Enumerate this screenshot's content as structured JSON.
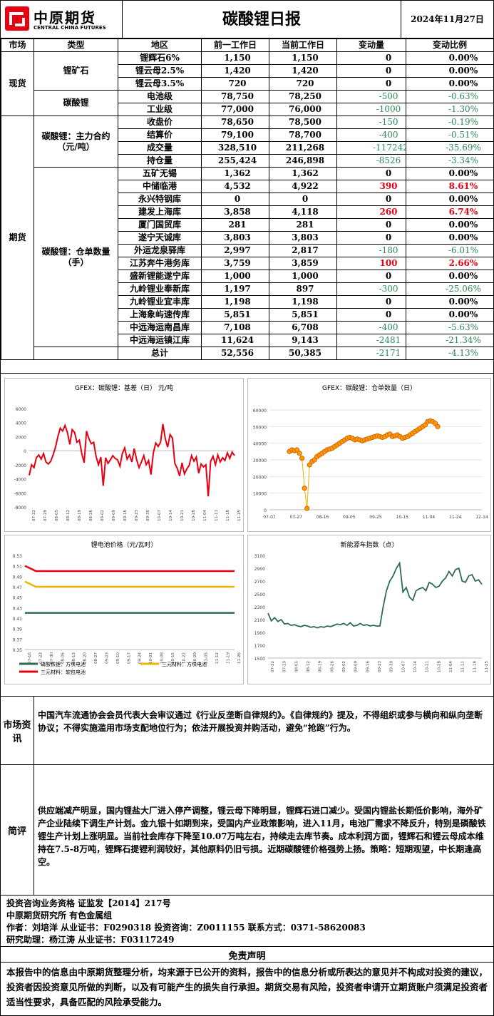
{
  "header": {
    "logo_cn": "中原期货",
    "logo_en": "CENTRAL CHINA FUTURES",
    "title": "碳酸锂日报",
    "date": "2024年11月27日"
  },
  "colors": {
    "accent_red": "#e60012",
    "negative_green": "#2e8b57"
  },
  "table": {
    "headers": [
      "市场",
      "类型",
      "地区",
      "前一工作日",
      "当前工作日",
      "变动量",
      "变动比例"
    ],
    "markets": [
      "现货",
      "期货"
    ],
    "categories": [
      "锂矿石",
      "碳酸锂",
      "碳酸锂：主力合约（元/吨）",
      "碳酸锂：仓单数量（手）"
    ],
    "rows": [
      {
        "name": "锂辉石6%",
        "prev": "1,150",
        "cur": "1,150",
        "chg": "0",
        "pct": "0.00%",
        "dir": "zero"
      },
      {
        "name": "锂云母2.5%",
        "prev": "1,420",
        "cur": "1,420",
        "chg": "0",
        "pct": "0.00%",
        "dir": "zero"
      },
      {
        "name": "锂云母3.5%",
        "prev": "720",
        "cur": "720",
        "chg": "0",
        "pct": "0.00%",
        "dir": "zero"
      },
      {
        "name": "电池级",
        "prev": "78,750",
        "cur": "78,250",
        "chg": "-500",
        "pct": "-0.63%",
        "dir": "neg"
      },
      {
        "name": "工业级",
        "prev": "77,000",
        "cur": "76,000",
        "chg": "-1000",
        "pct": "-1.30%",
        "dir": "neg"
      },
      {
        "name": "收盘价",
        "prev": "78,650",
        "cur": "78,500",
        "chg": "-150",
        "pct": "-0.19%",
        "dir": "neg"
      },
      {
        "name": "结算价",
        "prev": "79,100",
        "cur": "78,700",
        "chg": "-400",
        "pct": "-0.51%",
        "dir": "neg"
      },
      {
        "name": "成交量",
        "prev": "328,510",
        "cur": "211,268",
        "chg": "-117242",
        "pct": "-35.69%",
        "dir": "neg"
      },
      {
        "name": "持仓量",
        "prev": "255,424",
        "cur": "246,898",
        "chg": "-8526",
        "pct": "-3.34%",
        "dir": "neg"
      },
      {
        "name": "五矿无锡",
        "prev": "1,362",
        "cur": "1,362",
        "chg": "0",
        "pct": "0.00%",
        "dir": "zero"
      },
      {
        "name": "中储临港",
        "prev": "4,532",
        "cur": "4,922",
        "chg": "390",
        "pct": "8.61%",
        "dir": "pos"
      },
      {
        "name": "永兴特钢库",
        "prev": "0",
        "cur": "0",
        "chg": "0",
        "pct": "0.00%",
        "dir": "zero"
      },
      {
        "name": "建发上海库",
        "prev": "3,858",
        "cur": "4,118",
        "chg": "260",
        "pct": "6.74%",
        "dir": "pos"
      },
      {
        "name": "厦门国贸库",
        "prev": "281",
        "cur": "281",
        "chg": "0",
        "pct": "0.00%",
        "dir": "zero"
      },
      {
        "name": "遂宁天诚库",
        "prev": "3,803",
        "cur": "3,803",
        "chg": "0",
        "pct": "0.00%",
        "dir": "zero"
      },
      {
        "name": "外运龙泉驿库",
        "prev": "2,997",
        "cur": "2,817",
        "chg": "-180",
        "pct": "-6.01%",
        "dir": "neg"
      },
      {
        "name": "江苏奔牛港务库",
        "prev": "3,759",
        "cur": "3,859",
        "chg": "100",
        "pct": "2.66%",
        "dir": "pos"
      },
      {
        "name": "盛新锂能遂宁库",
        "prev": "1,000",
        "cur": "1,000",
        "chg": "0",
        "pct": "0.00%",
        "dir": "zero"
      },
      {
        "name": "九岭锂业奉新库",
        "prev": "1,197",
        "cur": "897",
        "chg": "-300",
        "pct": "-25.06%",
        "dir": "neg"
      },
      {
        "name": "九岭锂业宜丰库",
        "prev": "1,198",
        "cur": "1,198",
        "chg": "0",
        "pct": "0.00%",
        "dir": "zero"
      },
      {
        "name": "上海象屿速传库",
        "prev": "5,851",
        "cur": "5,851",
        "chg": "0",
        "pct": "0.00%",
        "dir": "zero"
      },
      {
        "name": "中远海运南昌库",
        "prev": "7,108",
        "cur": "6,708",
        "chg": "-400",
        "pct": "-5.63%",
        "dir": "neg"
      },
      {
        "name": "中远海运镇江库",
        "prev": "11,624",
        "cur": "9,143",
        "chg": "-2481",
        "pct": "-21.34%",
        "dir": "neg"
      },
      {
        "name": "总计",
        "prev": "52,556",
        "cur": "50,385",
        "chg": "-2171",
        "pct": "-4.13%",
        "dir": "neg"
      }
    ]
  },
  "chart_data": [
    {
      "type": "line",
      "title": "GFEX：碳酸锂：基差（日） 元/吨",
      "ylim": [
        -8000,
        6000
      ],
      "yticks": [
        "6000",
        "4000",
        "2000",
        "0",
        "-2000",
        "-4000",
        "-6000",
        "-8000"
      ],
      "xticks": [
        "07-22",
        "07-29",
        "08-05",
        "08-12",
        "08-19",
        "08-26",
        "09-02",
        "09-09",
        "09-16",
        "09-23",
        "09-30",
        "10-07",
        "10-14",
        "10-21",
        "10-28",
        "11-04",
        "11-11",
        "11-18",
        "11-25"
      ],
      "color": "#e60012",
      "values": [
        -3500,
        -2000,
        -2400,
        -1000,
        -600,
        -1200,
        -400,
        -1600,
        -1900,
        -1500,
        -600,
        500,
        2000,
        3200,
        2800,
        3600,
        2600,
        900,
        3000,
        2600,
        1200,
        1500,
        -400,
        -1700,
        2800,
        1700,
        1000,
        1200,
        -800,
        -2000,
        -900,
        -5000,
        -1000,
        -1800,
        -1300,
        -700,
        -1100,
        -1300,
        -2200,
        -400,
        400,
        -1200,
        -600,
        -1600,
        300,
        -1300,
        -2400,
        -1600,
        -700,
        -2000,
        -1400,
        -3400,
        -300,
        1100,
        600,
        1200,
        3800,
        1700,
        500,
        2300,
        1800,
        -1800,
        -2500,
        -3600,
        -1700,
        -3300,
        -2600,
        -2100,
        -700,
        -1500,
        -900,
        -3200,
        -1900,
        -2300,
        -2000,
        -6500,
        -1500,
        -800,
        -2000,
        -600,
        -1600,
        -1000,
        -1400,
        -300,
        -1100,
        -200,
        -700
      ]
    },
    {
      "type": "scatter",
      "title": "GFEX：碳酸锂：仓单数量（日）",
      "ylim": [
        0,
        60000
      ],
      "yticks": [
        "60000",
        "50000",
        "40000",
        "30000",
        "20000",
        "10000",
        "0"
      ],
      "xticks": [
        "07-07",
        "07-27",
        "08-16",
        "09-05",
        "09-25",
        "10-15",
        "11-04",
        "11-24",
        "12-14"
      ],
      "color": "#ff9900",
      "values": [
        35000,
        36000,
        35500,
        36000,
        34000,
        31000,
        13000,
        800,
        27000,
        29000,
        30000,
        32000,
        33000,
        34000,
        35000,
        36000,
        36500,
        37000,
        38000,
        39000,
        40000,
        41000,
        42000,
        43000,
        43500,
        43000,
        42000,
        42500,
        42000,
        41500,
        42000,
        42500,
        43000,
        43500,
        44000,
        44500,
        44000,
        43500,
        44000,
        45000,
        45500,
        44000,
        44500,
        45000,
        44000,
        43000,
        43500,
        44000,
        45000,
        46000,
        47000,
        48000,
        49000,
        50000,
        51000,
        53000,
        53500,
        53000,
        52000,
        50000
      ]
    },
    {
      "type": "line",
      "title": "锂电池价格（元/瓦时）",
      "ylim": [
        0.35,
        0.53
      ],
      "yticks": [
        "0.53",
        "0.51",
        "0.49",
        "0.47",
        "0.45",
        "0.43",
        "0.41",
        "0.39",
        "0.37",
        "0.35"
      ],
      "xticks": [
        "07-16",
        "07-23",
        "07-30",
        "08-06",
        "08-13",
        "08-20",
        "08-27",
        "09-03",
        "09-10",
        "09-17",
        "09-24",
        "10-01",
        "10-08",
        "10-15",
        "10-22",
        "10-29",
        "11-05",
        "11-12",
        "11-19",
        "11-26"
      ],
      "series": [
        {
          "name": "磷酸铁锂：方块电池",
          "color": "#2e6b4f",
          "values": [
            0.42,
            0.42,
            0.42,
            0.42,
            0.42,
            0.42,
            0.42,
            0.42,
            0.42,
            0.42,
            0.42,
            0.42,
            0.42,
            0.42,
            0.42,
            0.42,
            0.42,
            0.42,
            0.42,
            0.42
          ]
        },
        {
          "name": "三元材料：方块电池",
          "color": "#f0b400",
          "values": [
            0.48,
            0.47,
            0.47,
            0.47,
            0.47,
            0.47,
            0.47,
            0.47,
            0.47,
            0.47,
            0.47,
            0.47,
            0.47,
            0.47,
            0.47,
            0.47,
            0.47,
            0.47,
            0.47,
            0.47
          ]
        },
        {
          "name": "三元材料：软包电池",
          "color": "#e60012",
          "values": [
            0.51,
            0.5,
            0.5,
            0.5,
            0.5,
            0.5,
            0.5,
            0.5,
            0.5,
            0.5,
            0.5,
            0.5,
            0.5,
            0.5,
            0.5,
            0.5,
            0.5,
            0.5,
            0.5,
            0.5
          ]
        }
      ]
    },
    {
      "type": "line",
      "title": "新能源车指数（点）",
      "ylim": [
        1500,
        3100
      ],
      "yticks": [
        "3100",
        "2900",
        "2700",
        "2500",
        "2300",
        "2100",
        "1900",
        "1700",
        "1500"
      ],
      "xticks": [
        "07-22",
        "07-29",
        "08-05",
        "08-12",
        "08-19",
        "08-26",
        "09-02",
        "09-09",
        "09-16",
        "09-23",
        "09-30",
        "10-07",
        "10-14",
        "10-21",
        "10-28",
        "11-04",
        "11-11",
        "11-18",
        "11-25"
      ],
      "color": "#2e6b4f",
      "values": [
        2200,
        2080,
        2130,
        2070,
        2100,
        2030,
        2040,
        2010,
        2020,
        2000,
        1990,
        2010,
        2000,
        1980,
        1990,
        1970,
        1990,
        1980,
        2000,
        1990,
        2010,
        2030,
        2020,
        2040,
        2010,
        2050,
        2000,
        2010,
        2040,
        2010,
        2020,
        2000,
        2010,
        2000,
        2000,
        2300,
        2550,
        2700,
        2780,
        2900,
        2980,
        2530,
        2600,
        2450,
        2400,
        2550,
        2580,
        2600,
        2550,
        2680,
        2650,
        2600,
        2620,
        2700,
        2750,
        2850,
        2780,
        2880,
        2900,
        2700,
        2680,
        2780,
        2800,
        2700,
        2720,
        2650
      ]
    }
  ],
  "info": {
    "market_label": "市场资讯",
    "market_text": "中国汽车流通协会会员代表大会审议通过《行业反垄断自律规约》。《自律规约》提及，不得组织或参与横向和纵向垄断协议；不得实施滥用市场支配地位行为；依法开展投资并购活动，避免“抢跑”行为。",
    "comment_label": "简评",
    "comment_text": "供应端减产明显，国内锂盐大厂进入停产调整，锂云母下降明显，锂辉石进口减少。受国内锂盐长期低价影响，海外矿产企业陆续下调生产计划。金九银十如期到来，受国内产业政策影响，进入11月，电池厂需求不降反升，特别是磷酸铁锂生产计划上涨明显。当前社会库存下降至10.07万吨左右，持续走去库节奏。成本利润方面，锂辉石和锂云母成本维持在7.5-8万吨，锂辉石提锂利润较好，其他原料仍旧亏损。近期碳酸锂价格强势上扬。策略：短期观望，中长期逢高空。"
  },
  "footer": {
    "line1": "投资咨询业务资格   证监发【2014】217号",
    "line2": "中原期货研究所   有色金属组",
    "line3a": "作者：刘培洋     从业证书：F0290318     投资咨询：Z0011155     联系方式：0371-58620083",
    "line4": "研究助理：杨江涛     从业证书：F03117249",
    "disclaimer_title": "免责声明",
    "disclaimer_text": "本报告中的信息由中原期货整理分析，均来源于已公开的资料，报告中的信息分析或所表达的意见并不构成对投资的建议，投资者因投资意见所做的判断，以及有可能产生的损失自行承担。期货交易有风险，投资者申请开立期货账户须满足投资者适当性要求，具备匹配的风险承受能力。"
  }
}
